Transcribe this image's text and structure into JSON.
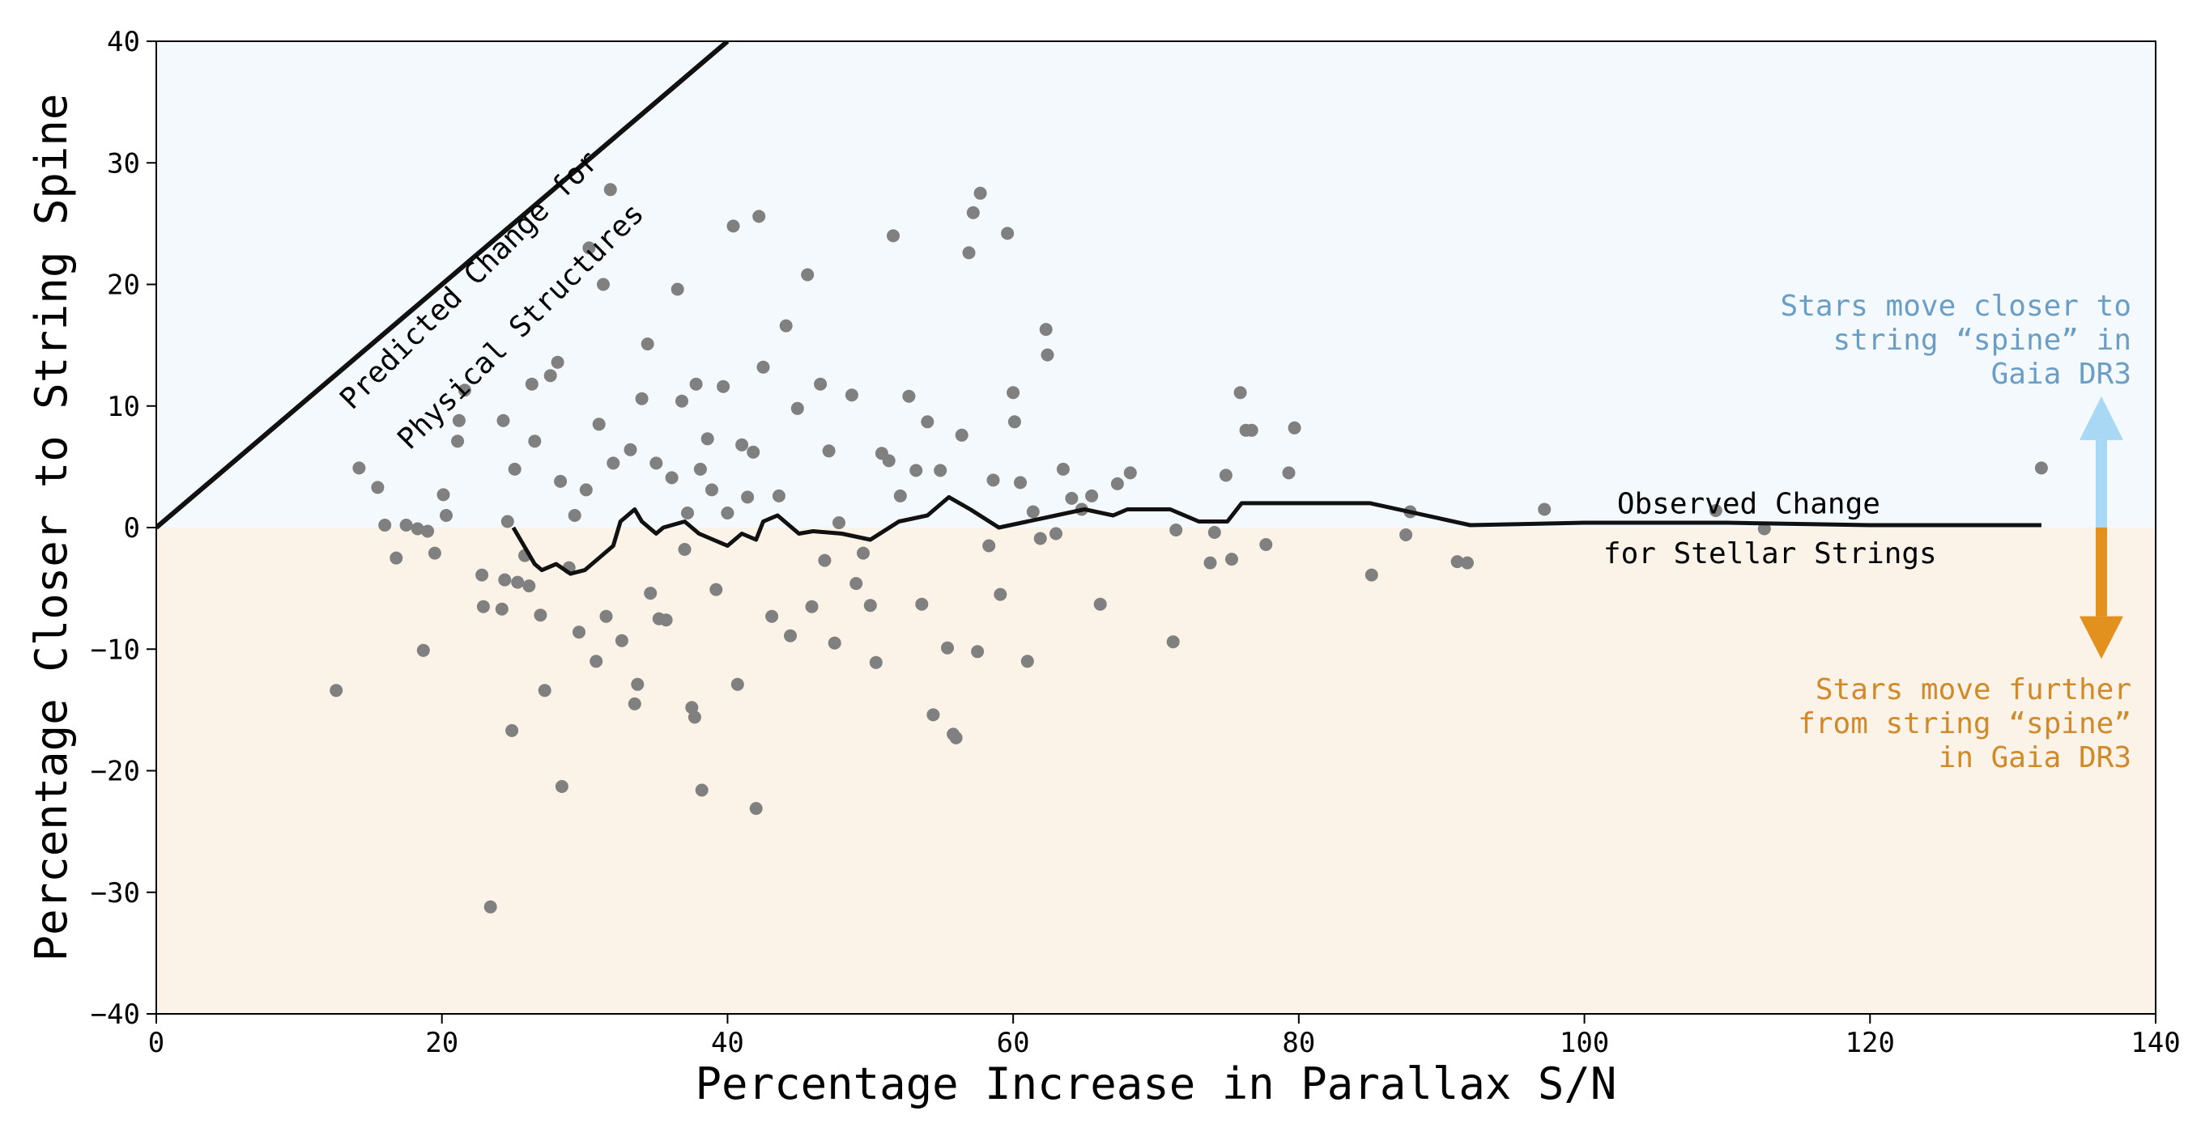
{
  "chart_data": {
    "type": "scatter",
    "xlabel": "Percentage Increase in Parallax S/N",
    "ylabel": "Percentage Closer to String Spine",
    "xlim": [
      0,
      140
    ],
    "ylim": [
      -40,
      40
    ],
    "xticks": [
      0,
      20,
      40,
      60,
      80,
      100,
      120,
      140
    ],
    "yticks": [
      -40,
      -30,
      -20,
      -10,
      0,
      10,
      20,
      30,
      40
    ],
    "xtick_labels": [
      "0",
      "20",
      "40",
      "60",
      "80",
      "100",
      "120",
      "140"
    ],
    "ytick_labels": [
      "−40",
      "−30",
      "−20",
      "−10",
      "0",
      "10",
      "20",
      "30",
      "40"
    ],
    "grid": false,
    "regions": {
      "above_zero_color": "#f4f9fd",
      "below_zero_color": "#fbf2e8"
    },
    "colors": {
      "points": "#808080",
      "lines": "#111111",
      "closer": "#a9d8f4",
      "closer_text": "#6a9ec6",
      "further": "#e2911f",
      "further_text": "#d08a2a"
    },
    "annotations": {
      "predicted_line1": "Predicted Change for",
      "predicted_line2": "Physical Structures",
      "observed_line1": "Observed Change",
      "observed_line2": "for Stellar Strings",
      "closer_line1": "Stars move closer to",
      "closer_line2": "string “spine” in",
      "closer_line3": "Gaia DR3",
      "further_line1": "Stars move further",
      "further_line2": "from string “spine”",
      "further_line3": "in Gaia DR3"
    },
    "predicted_line": {
      "x": [
        0,
        40
      ],
      "y": [
        0,
        40
      ]
    },
    "observed_change": {
      "x": [
        25,
        25.5,
        26.5,
        27,
        28,
        29,
        30,
        31,
        32,
        32.5,
        33.5,
        34,
        35,
        35.5,
        37,
        38,
        39,
        40,
        41,
        42,
        42.5,
        43.5,
        45,
        46,
        48,
        50,
        52,
        54,
        55.5,
        57,
        59,
        61,
        63,
        65,
        67,
        68,
        71,
        73,
        75,
        76,
        80,
        85,
        92,
        100,
        110,
        120,
        132
      ],
      "y": [
        0,
        -1,
        -3,
        -3.5,
        -3,
        -3.8,
        -3.5,
        -2.5,
        -1.5,
        0.5,
        1.5,
        0.5,
        -0.5,
        0,
        0.5,
        -0.5,
        -1,
        -1.5,
        -0.5,
        -1,
        0.5,
        1,
        -0.5,
        -0.3,
        -0.5,
        -1,
        0.5,
        1,
        2.5,
        1.5,
        0,
        0.5,
        1,
        1.5,
        1,
        1.5,
        1.5,
        0.5,
        0.5,
        2,
        2,
        2,
        0.2,
        0.4,
        0.4,
        0.2,
        0.2
      ]
    },
    "points": [
      [
        12.6,
        -13.4
      ],
      [
        14.2,
        4.9
      ],
      [
        15.5,
        3.3
      ],
      [
        16,
        0.2
      ],
      [
        16.8,
        -2.5
      ],
      [
        17.5,
        0.2
      ],
      [
        18.3,
        -0.1
      ],
      [
        18.7,
        -10.1
      ],
      [
        19,
        -0.3
      ],
      [
        19.5,
        -2.1
      ],
      [
        20.1,
        2.7
      ],
      [
        20.3,
        1
      ],
      [
        21.1,
        7.1
      ],
      [
        21.2,
        8.8
      ],
      [
        21.6,
        11.3
      ],
      [
        22.8,
        -3.9
      ],
      [
        22.9,
        -6.5
      ],
      [
        23.4,
        -31.2
      ],
      [
        24.2,
        -6.7
      ],
      [
        24.3,
        8.8
      ],
      [
        24.4,
        -4.3
      ],
      [
        24.6,
        0.5
      ],
      [
        24.9,
        -16.7
      ],
      [
        25.1,
        4.8
      ],
      [
        25.3,
        -4.5
      ],
      [
        25.8,
        -2.3
      ],
      [
        26.1,
        -4.8
      ],
      [
        26.3,
        11.8
      ],
      [
        26.5,
        7.1
      ],
      [
        26.9,
        -7.2
      ],
      [
        27.2,
        -13.4
      ],
      [
        27.6,
        12.5
      ],
      [
        28.1,
        13.6
      ],
      [
        28.3,
        3.8
      ],
      [
        28.4,
        -21.3
      ],
      [
        28.9,
        -3.3
      ],
      [
        29.3,
        1
      ],
      [
        29.6,
        -8.6
      ],
      [
        30.1,
        3.1
      ],
      [
        30.3,
        23
      ],
      [
        30.8,
        -11
      ],
      [
        31,
        8.5
      ],
      [
        31.3,
        20
      ],
      [
        31.5,
        -7.3
      ],
      [
        31.8,
        27.8
      ],
      [
        32,
        5.3
      ],
      [
        32.6,
        -9.3
      ],
      [
        33.2,
        6.4
      ],
      [
        33.5,
        -14.5
      ],
      [
        33.7,
        -12.9
      ],
      [
        34,
        10.6
      ],
      [
        34.4,
        15.1
      ],
      [
        34.6,
        -5.4
      ],
      [
        35,
        5.3
      ],
      [
        35.2,
        -7.5
      ],
      [
        35.7,
        -7.6
      ],
      [
        36.1,
        4.1
      ],
      [
        36.5,
        19.6
      ],
      [
        36.8,
        10.4
      ],
      [
        37,
        -1.8
      ],
      [
        37.2,
        1.2
      ],
      [
        37.5,
        -14.8
      ],
      [
        37.7,
        -15.6
      ],
      [
        37.8,
        11.8
      ],
      [
        38.1,
        4.8
      ],
      [
        38.2,
        -21.6
      ],
      [
        38.6,
        7.3
      ],
      [
        38.9,
        3.1
      ],
      [
        39.2,
        -5.1
      ],
      [
        39.7,
        11.6
      ],
      [
        40,
        1.2
      ],
      [
        40.4,
        24.8
      ],
      [
        40.7,
        -12.9
      ],
      [
        41,
        6.8
      ],
      [
        41.4,
        2.5
      ],
      [
        41.8,
        6.2
      ],
      [
        42,
        -23.1
      ],
      [
        42.2,
        25.6
      ],
      [
        42.5,
        13.2
      ],
      [
        43.1,
        -7.3
      ],
      [
        43.6,
        2.6
      ],
      [
        44.1,
        16.6
      ],
      [
        44.4,
        -8.9
      ],
      [
        44.9,
        9.8
      ],
      [
        45.6,
        20.8
      ],
      [
        45.9,
        -6.5
      ],
      [
        46.5,
        11.8
      ],
      [
        46.8,
        -2.7
      ],
      [
        47.1,
        6.3
      ],
      [
        47.5,
        -9.5
      ],
      [
        47.8,
        0.4
      ],
      [
        48.7,
        10.9
      ],
      [
        49,
        -4.6
      ],
      [
        49.5,
        -2.1
      ],
      [
        50,
        -6.4
      ],
      [
        50.4,
        -11.1
      ],
      [
        50.8,
        6.1
      ],
      [
        51.3,
        5.5
      ],
      [
        51.6,
        24
      ],
      [
        52.1,
        2.6
      ],
      [
        52.7,
        10.8
      ],
      [
        53.2,
        4.7
      ],
      [
        53.6,
        -6.3
      ],
      [
        54,
        8.7
      ],
      [
        54.4,
        -15.4
      ],
      [
        54.9,
        4.7
      ],
      [
        55.4,
        -9.9
      ],
      [
        55.8,
        -17
      ],
      [
        56,
        -17.3
      ],
      [
        56.4,
        7.6
      ],
      [
        56.9,
        22.6
      ],
      [
        57.2,
        25.9
      ],
      [
        57.5,
        -10.2
      ],
      [
        57.7,
        27.5
      ],
      [
        58.3,
        -1.5
      ],
      [
        58.6,
        3.9
      ],
      [
        59.1,
        -5.5
      ],
      [
        59.6,
        24.2
      ],
      [
        60,
        11.1
      ],
      [
        60.1,
        8.7
      ],
      [
        60.5,
        3.7
      ],
      [
        61,
        -11
      ],
      [
        61.4,
        1.3
      ],
      [
        61.9,
        -0.9
      ],
      [
        62.3,
        16.3
      ],
      [
        62.4,
        14.2
      ],
      [
        63,
        -0.5
      ],
      [
        63.5,
        4.8
      ],
      [
        64.1,
        2.4
      ],
      [
        64.8,
        1.5
      ],
      [
        65.5,
        2.6
      ],
      [
        66.1,
        -6.3
      ],
      [
        67.3,
        3.6
      ],
      [
        68.2,
        4.5
      ],
      [
        71.2,
        -9.4
      ],
      [
        71.4,
        -0.2
      ],
      [
        73.8,
        -2.9
      ],
      [
        74.1,
        -0.4
      ],
      [
        74.9,
        4.3
      ],
      [
        75.3,
        -2.6
      ],
      [
        75.9,
        11.1
      ],
      [
        76.3,
        8
      ],
      [
        76.7,
        8
      ],
      [
        77.7,
        -1.4
      ],
      [
        79.3,
        4.5
      ],
      [
        79.7,
        8.2
      ],
      [
        85.1,
        -3.9
      ],
      [
        87.5,
        -0.6
      ],
      [
        87.8,
        1.3
      ],
      [
        91.1,
        -2.8
      ],
      [
        91.8,
        -2.9
      ],
      [
        97.2,
        1.5
      ],
      [
        109.2,
        1.4
      ],
      [
        112.6,
        -0.1
      ],
      [
        132,
        4.9
      ]
    ]
  }
}
